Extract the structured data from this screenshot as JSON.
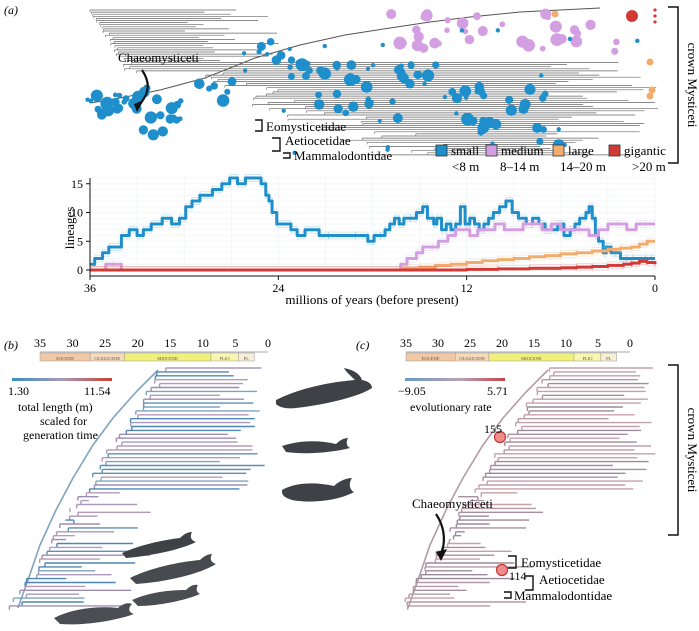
{
  "panel_a": {
    "label": "(a)",
    "clade_labels": {
      "crown": "crown Mysticeti",
      "chaeo": "Chaeomysticeti",
      "eomy": "Eomysticetidae",
      "aetio": "Aetiocetidae",
      "mamm": "Mammalodontidae"
    },
    "legend": [
      {
        "name": "small",
        "range": "<8 m",
        "color": "#1f8fcc"
      },
      {
        "name": "medium",
        "range": "8–14 m",
        "color": "#d49fe2"
      },
      {
        "name": "large",
        "range": "14–20 m",
        "color": "#f2ac6b"
      },
      {
        "name": "gigantic",
        "range": ">20 m",
        "color": "#d33a36"
      }
    ]
  },
  "chart_data": {
    "type": "line",
    "x_direction": "reversed",
    "xlabel": "millions of years (before present)",
    "ylabel": "lineages",
    "xlim": [
      36,
      0
    ],
    "ylim": [
      0,
      16
    ],
    "xticks": [
      36,
      24,
      12,
      0
    ],
    "yticks": [
      0,
      5,
      10,
      15
    ],
    "grid": true,
    "series": [
      {
        "name": "small",
        "color": "#1f8fcc",
        "x": [
          36,
          35.7,
          35.2,
          34.8,
          34,
          33.5,
          33,
          32.6,
          32.1,
          31.4,
          30.8,
          30.3,
          29.9,
          29.5,
          29,
          28.2,
          27.6,
          27.1,
          26.6,
          26.1,
          25.6,
          25.1,
          24.8,
          24.6,
          24.4,
          24.1,
          23.7,
          23.2,
          22.8,
          22.3,
          21.4,
          20.8,
          20,
          19.1,
          18.3,
          17.9,
          17.5,
          17.2,
          16.9,
          16.6,
          16.3,
          16,
          15.6,
          15.2,
          14.8,
          14.5,
          14.1,
          13.9,
          13.6,
          13.3,
          13,
          12.7,
          12.4,
          12.1,
          11.8,
          11.5,
          11.2,
          10.9,
          10.6,
          10.3,
          9.9,
          9.5,
          9.1,
          8.7,
          8.2,
          7.8,
          7.4,
          7,
          6.6,
          6.2,
          5.8,
          5.4,
          5.1,
          4.8,
          4.4,
          4.2,
          4,
          3.8,
          3.6,
          3.3,
          3.1,
          2.8,
          2.5,
          2.2,
          1.8,
          1.4,
          1,
          0.6,
          0.2,
          0
        ],
        "values": [
          1,
          2,
          3,
          4,
          6,
          7,
          6,
          7,
          8,
          9,
          8,
          9,
          11,
          12,
          13,
          14,
          15,
          16,
          15,
          16,
          16,
          15,
          13,
          12,
          10,
          8,
          8,
          7,
          6,
          7,
          6,
          6,
          6,
          6,
          5,
          6,
          6,
          7,
          8,
          9,
          8,
          9,
          9,
          10,
          11,
          9,
          8,
          9,
          7,
          8,
          7,
          8,
          11,
          8,
          9,
          8,
          7,
          8,
          9,
          10,
          11,
          12,
          10,
          9,
          8,
          9,
          8,
          7,
          7,
          8,
          6,
          7,
          8,
          9,
          10,
          11,
          9,
          6,
          5,
          3,
          4,
          3,
          3,
          2,
          2,
          2,
          2,
          2,
          2,
          2
        ]
      },
      {
        "name": "medium",
        "color": "#d49fe2",
        "x": [
          36,
          35.5,
          35,
          34.5,
          34,
          16.5,
          16.2,
          15.8,
          15.2,
          14.8,
          14.2,
          13.8,
          13.2,
          12.7,
          12.2,
          11.8,
          11.3,
          10.8,
          10.2,
          9.6,
          9,
          8.4,
          7.8,
          7.2,
          6.6,
          6,
          5.4,
          4.8,
          4.2,
          3.6,
          3,
          2.4,
          1.8,
          1.2,
          0.6,
          0
        ],
        "values": [
          0,
          0,
          1,
          1,
          0,
          0,
          1,
          2,
          3,
          4,
          4,
          5,
          6,
          7,
          7,
          6,
          7,
          7,
          8,
          7,
          7,
          8,
          8,
          7,
          8,
          7,
          7,
          7,
          6,
          7,
          8,
          8,
          7,
          8,
          8,
          8
        ]
      },
      {
        "name": "large",
        "color": "#f2ac6b",
        "x": [
          36,
          16.5,
          16,
          15,
          14,
          13,
          12,
          11,
          10,
          9,
          8,
          7,
          6,
          5,
          4,
          3,
          2.2,
          1.5,
          1,
          0.5,
          0
        ],
        "values": [
          0,
          0,
          0.3,
          0.5,
          0.8,
          1,
          1.3,
          1.6,
          1.8,
          2,
          2.3,
          2.5,
          2.8,
          3,
          3.3,
          3.6,
          3.8,
          4,
          4.5,
          5,
          5
        ]
      },
      {
        "name": "gigantic",
        "color": "#d33a36",
        "x": [
          36,
          14,
          12,
          10,
          8,
          6,
          5,
          4,
          3,
          2,
          1.5,
          1,
          0.5,
          0
        ],
        "values": [
          0,
          0,
          0.1,
          0.2,
          0.3,
          0.4,
          0.5,
          0.6,
          0.8,
          1,
          1.2,
          1.5,
          1.3,
          1
        ]
      }
    ]
  },
  "panel_b": {
    "label": "(b)",
    "time_ticks": [
      "35",
      "30",
      "25",
      "20",
      "15",
      "10",
      "5",
      "0"
    ],
    "epochs": [
      "EOCENE",
      "OLIGOCENE",
      "MIOCENE",
      "PLIO",
      "PL"
    ],
    "scale_min": "1.30",
    "scale_max": "11.54",
    "scale_title_1": "total length (m)",
    "scale_title_2": "scaled for",
    "scale_title_3": "generation time"
  },
  "panel_c": {
    "label": "(c)",
    "time_ticks": [
      "35",
      "30",
      "25",
      "20",
      "15",
      "10",
      "5",
      "0"
    ],
    "epochs": [
      "EOCENE",
      "OLIGOCENE",
      "MIOCENE",
      "PLIO",
      "PL"
    ],
    "scale_min": "−9.05",
    "scale_max": "5.71",
    "scale_title": "evolutionary rate",
    "node_155": "155",
    "node_114": "114",
    "clade_labels": {
      "crown": "crown Mysticeti",
      "chaeo": "Chaeomysticeti",
      "eomy": "Eomysticetidae",
      "aetio": "Aetiocetidae",
      "mamm": "Mammalodontidae"
    }
  }
}
